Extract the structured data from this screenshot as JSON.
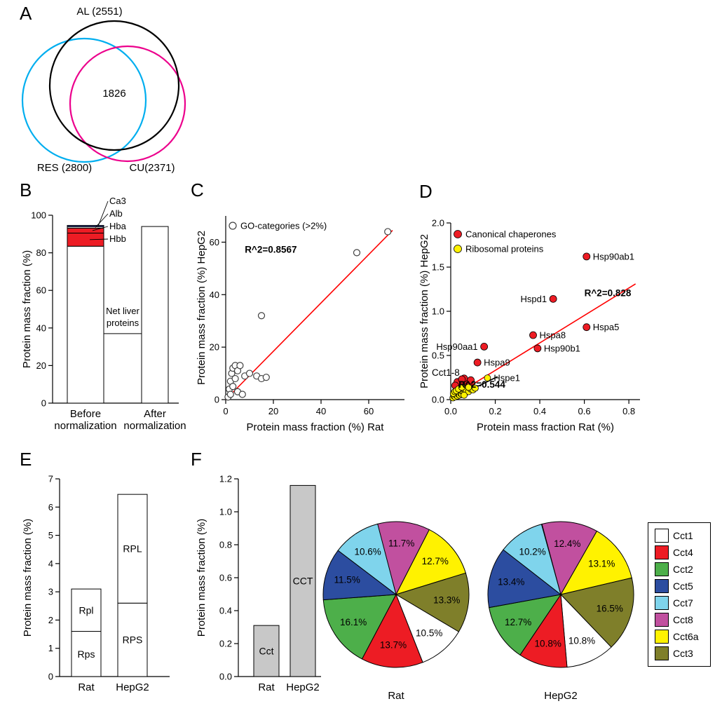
{
  "figure": {
    "background": "#ffffff",
    "panel_labels": {
      "A": "A",
      "B": "B",
      "C": "C",
      "D": "D",
      "E": "E",
      "F": "F"
    }
  },
  "panels": {
    "A": {
      "venn": {
        "center_count": "1826",
        "sets": [
          {
            "label": "AL (2551)",
            "color": "#000000"
          },
          {
            "label": "RES (2800)",
            "color": "#00aeef"
          },
          {
            "label": "CU(2371)",
            "color": "#ec008c"
          }
        ]
      }
    }
  },
  "cct_legend": {
    "items": [
      {
        "label": "Cct1",
        "color": "#ffffff"
      },
      {
        "label": "Cct4",
        "color": "#ed1c24"
      },
      {
        "label": "Cct2",
        "color": "#4daf4a"
      },
      {
        "label": "Cct5",
        "color": "#2c4da0"
      },
      {
        "label": "Cct7",
        "color": "#7fd4ec"
      },
      {
        "label": "Cct8",
        "color": "#c1509f"
      },
      {
        "label": "Cct6a",
        "color": "#fff200"
      },
      {
        "label": "Cct3",
        "color": "#7f7f2a"
      }
    ]
  },
  "chart_data": [
    {
      "id": "B",
      "type": "bar",
      "ylabel": "Protein mass fraction (%)",
      "ylim": [
        0,
        100
      ],
      "yticks": [
        0,
        20,
        40,
        60,
        80,
        100
      ],
      "categories": [
        [
          "Before",
          "normalization"
        ],
        [
          "After",
          "normalization"
        ]
      ],
      "stacks": [
        [
          {
            "label": "",
            "value": 83.5,
            "color": "#ffffff"
          },
          {
            "label": "Hbb",
            "value": 7.0,
            "color": "#ed1c24"
          },
          {
            "label": "Hba",
            "value": 2.6,
            "color": "#ed1c24"
          },
          {
            "label": "Alb",
            "value": 0.8,
            "color": "#d9d9d9"
          },
          {
            "label": "Ca3",
            "value": 0.7,
            "color": "#3b4aa0"
          }
        ],
        [
          {
            "label": "",
            "value": 94,
            "color": "#ffffff"
          }
        ]
      ],
      "callouts": [
        "Ca3",
        "Alb",
        "Hba",
        "Hbb"
      ],
      "annotation": {
        "text_lines": [
          "Net liver",
          "proteins"
        ],
        "line_y": 37
      }
    },
    {
      "id": "C",
      "type": "scatter",
      "xlabel": "Protein mass fraction (%) Rat",
      "ylabel": "Protein mass fraction (%) HepG2",
      "xlim": [
        0,
        75
      ],
      "ylim": [
        0,
        70
      ],
      "xticks": [
        0,
        20,
        40,
        60
      ],
      "yticks": [
        0,
        20,
        40,
        60
      ],
      "legend": [
        {
          "label": "GO-categories (>2%)",
          "marker": "open"
        }
      ],
      "series": [
        {
          "name": "GO-categories (>2%)",
          "marker": "open",
          "color": "#404040",
          "points": [
            [
              1,
              1
            ],
            [
              1.5,
              4
            ],
            [
              2,
              2
            ],
            [
              2,
              7
            ],
            [
              2.5,
              10
            ],
            [
              3,
              5
            ],
            [
              3,
              12
            ],
            [
              4,
              8
            ],
            [
              4,
              13
            ],
            [
              5,
              11
            ],
            [
              5,
              3
            ],
            [
              6,
              13
            ],
            [
              7,
              2
            ],
            [
              8,
              9
            ],
            [
              10,
              10
            ],
            [
              13,
              9
            ],
            [
              15,
              8
            ],
            [
              17,
              8.5
            ],
            [
              15,
              32
            ],
            [
              55,
              56
            ],
            [
              68,
              64
            ]
          ]
        }
      ],
      "fit_lines": [
        {
          "p1": [
            0,
            0
          ],
          "p2": [
            70,
            64.5
          ],
          "color": "#ff0000"
        }
      ],
      "annotations": [
        {
          "text": "R^2=0.8567",
          "x": 8,
          "y": 56,
          "color": "#ff0000",
          "bold": true
        }
      ]
    },
    {
      "id": "D",
      "type": "scatter",
      "xlabel": "Protein mass fraction Rat (%)",
      "ylabel": "Protein mass fraction (%) HepG2",
      "xlim": [
        0,
        0.85
      ],
      "ylim": [
        0,
        2.0
      ],
      "xticks": [
        "0.0",
        "0.2",
        "0.4",
        "0.6",
        "0.8"
      ],
      "yticks": [
        "0.0",
        "0.5",
        "1.0",
        "1.5",
        "2.0"
      ],
      "legend": [
        {
          "label": "Canonical chaperones",
          "color": "#ed1c24"
        },
        {
          "label": "Ribosomal proteins",
          "color": "#fff200"
        }
      ],
      "series": [
        {
          "name": "Canonical chaperones",
          "color": "#ed1c24",
          "points": [
            [
              0.61,
              1.62
            ],
            [
              0.46,
              1.14
            ],
            [
              0.61,
              0.82
            ],
            [
              0.37,
              0.73
            ],
            [
              0.39,
              0.58
            ],
            [
              0.15,
              0.6
            ],
            [
              0.12,
              0.42
            ],
            [
              0.02,
              0.08
            ],
            [
              0.03,
              0.12
            ],
            [
              0.04,
              0.15
            ],
            [
              0.05,
              0.18
            ],
            [
              0.06,
              0.13
            ],
            [
              0.07,
              0.2
            ],
            [
              0.05,
              0.1
            ],
            [
              0.08,
              0.16
            ],
            [
              0.03,
              0.2
            ],
            [
              0.06,
              0.24
            ],
            [
              0.04,
              0.06
            ],
            [
              0.09,
              0.22
            ],
            [
              0.02,
              0.16
            ],
            [
              0.07,
              0.09
            ],
            [
              0.05,
              0.23
            ]
          ],
          "labels": [
            {
              "text": "Hsp90ab1",
              "point": 0,
              "side": "right"
            },
            {
              "text": "Hspd1",
              "point": 1,
              "side": "left"
            },
            {
              "text": "Hspa5",
              "point": 2,
              "side": "right"
            },
            {
              "text": "Hspa8",
              "point": 3,
              "side": "right"
            },
            {
              "text": "Hsp90b1",
              "point": 4,
              "side": "right"
            },
            {
              "text": "Hsp90aa1",
              "point": 5,
              "side": "left"
            },
            {
              "text": "Hspa9",
              "point": 6,
              "side": "right"
            }
          ]
        },
        {
          "name": "Ribosomal proteins",
          "color": "#fff200",
          "points": [
            [
              0.165,
              0.245
            ],
            [
              0.01,
              0.02
            ],
            [
              0.015,
              0.04
            ],
            [
              0.02,
              0.03
            ],
            [
              0.02,
              0.06
            ],
            [
              0.025,
              0.05
            ],
            [
              0.03,
              0.04
            ],
            [
              0.03,
              0.08
            ],
            [
              0.035,
              0.06
            ],
            [
              0.04,
              0.05
            ],
            [
              0.04,
              0.09
            ],
            [
              0.045,
              0.07
            ],
            [
              0.05,
              0.06
            ],
            [
              0.05,
              0.1
            ],
            [
              0.06,
              0.08
            ],
            [
              0.06,
              0.12
            ],
            [
              0.07,
              0.1
            ],
            [
              0.08,
              0.09
            ],
            [
              0.09,
              0.12
            ],
            [
              0.1,
              0.11
            ],
            [
              0.11,
              0.13
            ],
            [
              0.012,
              0.07
            ],
            [
              0.018,
              0.09
            ],
            [
              0.06,
              0.05
            ],
            [
              0.08,
              0.14
            ],
            [
              0.025,
              0.1
            ],
            [
              0.035,
              0.12
            ],
            [
              0.05,
              0.14
            ]
          ],
          "labels": [
            {
              "text": "Hspe1",
              "point": 0,
              "side": "right"
            }
          ]
        }
      ],
      "fit_lines": [
        {
          "p1": [
            0,
            0.02
          ],
          "p2": [
            0.83,
            1.31
          ],
          "color": "#ff0000"
        },
        {
          "p1": [
            0,
            0
          ],
          "p2": [
            0.21,
            0.26
          ],
          "color": "#000000"
        }
      ],
      "annotations": [
        {
          "text": "R^2=0.828",
          "x": 0.6,
          "y": 1.17,
          "color": "#ff0000",
          "bold": true
        },
        {
          "text": "R^2=0.544",
          "x": 0.035,
          "y": 0.135,
          "color": "#000000",
          "bold": true
        },
        {
          "text": "Cct1-8",
          "x": -0.085,
          "y": 0.27,
          "color": "#000000",
          "bold": false
        }
      ]
    },
    {
      "id": "E",
      "type": "bar",
      "ylabel": "Protein mass fraction (%)",
      "ylim": [
        0,
        7
      ],
      "yticks": [
        0,
        1,
        2,
        3,
        4,
        5,
        6,
        7
      ],
      "categories": [
        [
          "Rat"
        ],
        [
          "HepG2"
        ]
      ],
      "inside_labels": true,
      "stacks": [
        [
          {
            "label": "Rps",
            "value": 1.6,
            "color": "#ffffff"
          },
          {
            "label": "Rpl",
            "value": 1.5,
            "color": "#ffffff"
          }
        ],
        [
          {
            "label": "RPS",
            "value": 2.6,
            "color": "#ffffff"
          },
          {
            "label": "RPL",
            "value": 3.85,
            "color": "#ffffff"
          }
        ]
      ]
    },
    {
      "id": "F_bar",
      "type": "bar",
      "ylabel": "Protein mass fraction (%)",
      "ylim": [
        0,
        1.2
      ],
      "yticks": [
        "0.0",
        "0.2",
        "0.4",
        "0.6",
        "0.8",
        "1.0",
        "1.2"
      ],
      "categories": [
        [
          "Rat"
        ],
        [
          "HepG2"
        ]
      ],
      "inside_labels": true,
      "stacks": [
        [
          {
            "label": "Cct",
            "value": 0.31,
            "color": "#c8c8c8"
          }
        ],
        [
          {
            "label": "CCT",
            "value": 1.16,
            "color": "#c8c8c8"
          }
        ]
      ]
    },
    {
      "id": "F_pie_rat",
      "type": "pie",
      "title": "Rat",
      "start_angle": -15,
      "slices": [
        {
          "label": "Cct8",
          "pct": 11.7,
          "color": "#c1509f"
        },
        {
          "label": "Cct6a",
          "pct": 12.7,
          "color": "#fff200"
        },
        {
          "label": "Cct3",
          "pct": 13.3,
          "color": "#7f7f2a"
        },
        {
          "label": "Cct1",
          "pct": 10.5,
          "color": "#ffffff"
        },
        {
          "label": "Cct4",
          "pct": 13.7,
          "color": "#ed1c24"
        },
        {
          "label": "Cct2",
          "pct": 16.1,
          "color": "#4daf4a"
        },
        {
          "label": "Cct5",
          "pct": 11.5,
          "color": "#2c4da0"
        },
        {
          "label": "Cct7",
          "pct": 10.6,
          "color": "#7fd4ec"
        }
      ]
    },
    {
      "id": "F_pie_hepg2",
      "type": "pie",
      "title": "HepG2",
      "start_angle": -15,
      "slices": [
        {
          "label": "Cct8",
          "pct": 12.4,
          "color": "#c1509f"
        },
        {
          "label": "Cct6a",
          "pct": 13.1,
          "color": "#fff200"
        },
        {
          "label": "Cct3",
          "pct": 16.5,
          "color": "#7f7f2a"
        },
        {
          "label": "Cct1",
          "pct": 10.8,
          "color": "#ffffff"
        },
        {
          "label": "Cct4",
          "pct": 10.8,
          "color": "#ed1c24"
        },
        {
          "label": "Cct2",
          "pct": 12.7,
          "color": "#4daf4a"
        },
        {
          "label": "Cct5",
          "pct": 13.4,
          "color": "#2c4da0"
        },
        {
          "label": "Cct7",
          "pct": 10.2,
          "color": "#7fd4ec"
        }
      ]
    }
  ]
}
